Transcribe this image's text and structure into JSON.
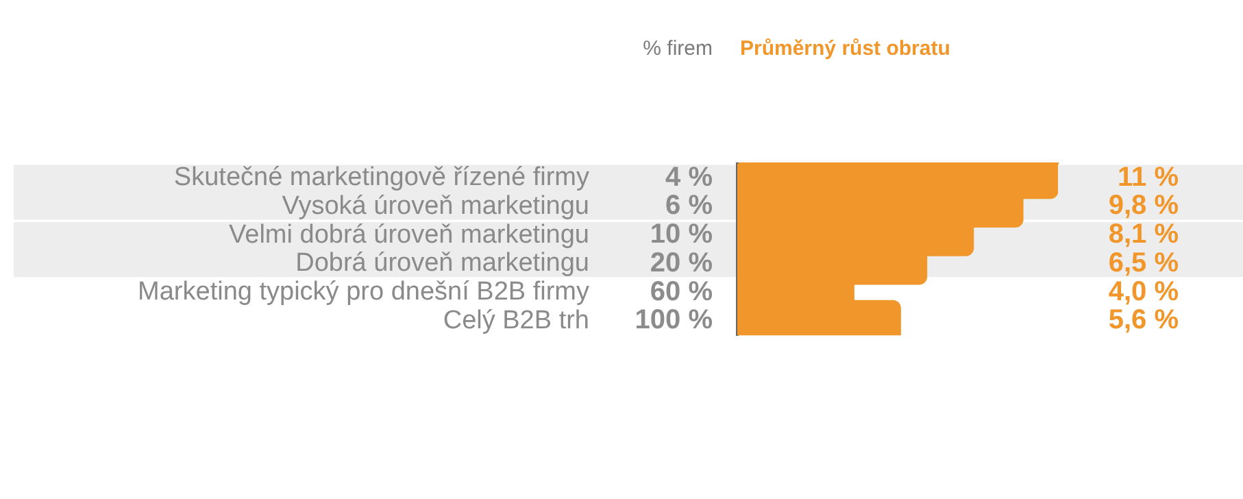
{
  "chart_data": {
    "type": "bar",
    "orientation": "horizontal",
    "title": "Průměrný růst obratu",
    "categories": [
      "Skutečné marketingově řízené firmy",
      "Vysoká úroveň marketingu",
      "Velmi dobrá úroveň marketingu",
      "Dobrá úroveň marketingu",
      "Marketing typický pro dnešní B2B firmy",
      "Celý B2B trh"
    ],
    "values": [
      11,
      9.8,
      8.1,
      6.5,
      4.0,
      5.6
    ],
    "value_labels": [
      "11 %",
      "9,8 %",
      "8,1 %",
      "6,5 %",
      "4,0 %",
      "5,6 %"
    ],
    "color": "#f0962a",
    "xlim": [
      0,
      11
    ],
    "tick_labels": "y",
    "grid": false,
    "legend": false,
    "annotations": [
      "% firem",
      "4 %",
      "6 %",
      "10 %",
      "20 %",
      "60 %",
      "100 %"
    ],
    "bands": [
      {
        "axis": "y",
        "from": "Skutečné marketingově řízené firmy",
        "to": "Vysoká úroveň marketingu",
        "color": "#ededed"
      },
      {
        "axis": "y",
        "from": "Velmi dobrá úroveň marketingu",
        "to": "Dobrá úroveň marketingu",
        "color": "#ededed"
      }
    ]
  }
}
